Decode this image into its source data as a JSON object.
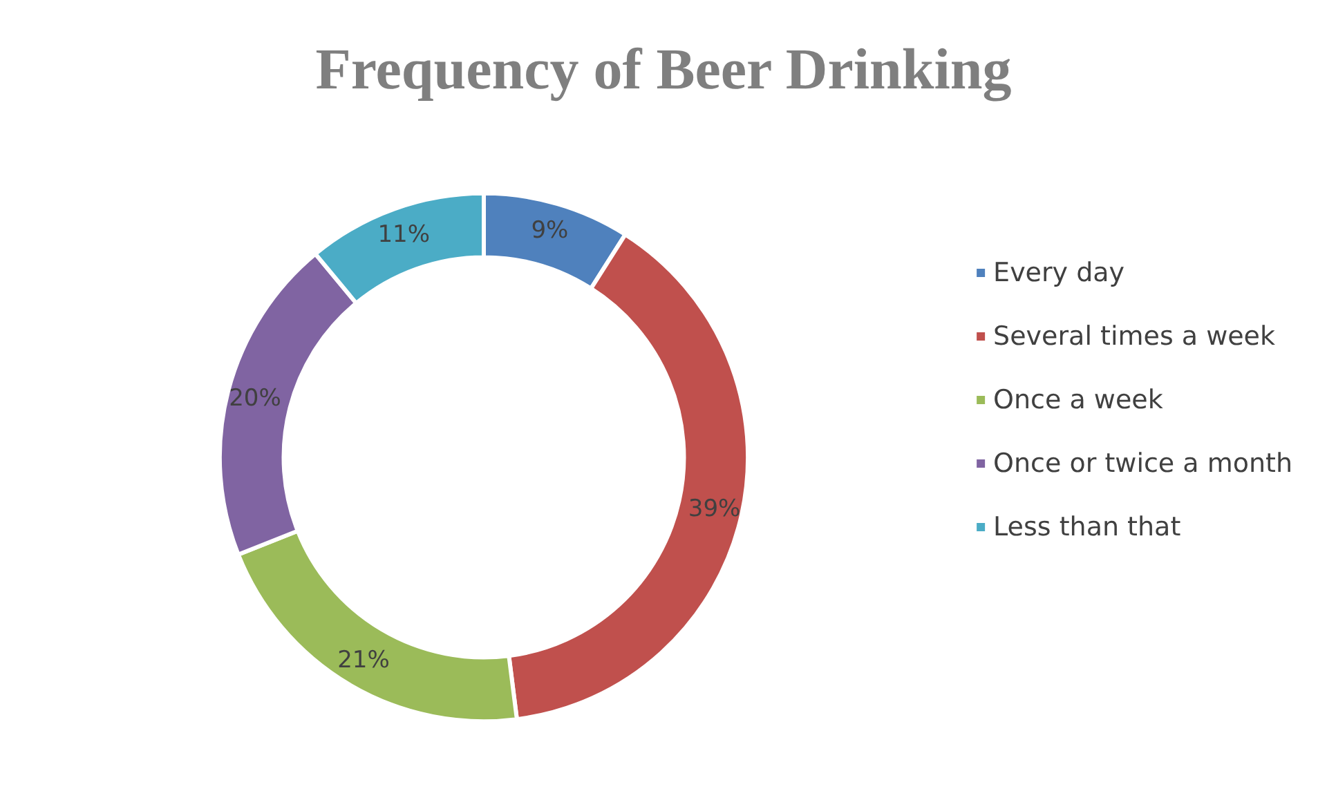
{
  "chart_data": {
    "type": "donut",
    "title": "Frequency of Beer Drinking",
    "categories": [
      "Every day",
      "Several times a week",
      "Once a week",
      "Once or twice a month",
      "Less than that"
    ],
    "values": [
      9,
      39,
      21,
      20,
      11
    ],
    "value_labels": [
      "9%",
      "39%",
      "21%",
      "20%",
      "11%"
    ],
    "colors": [
      "#4f81bd",
      "#c0504d",
      "#9bbb59",
      "#8064a2",
      "#4bacc6"
    ],
    "legend": "right"
  }
}
